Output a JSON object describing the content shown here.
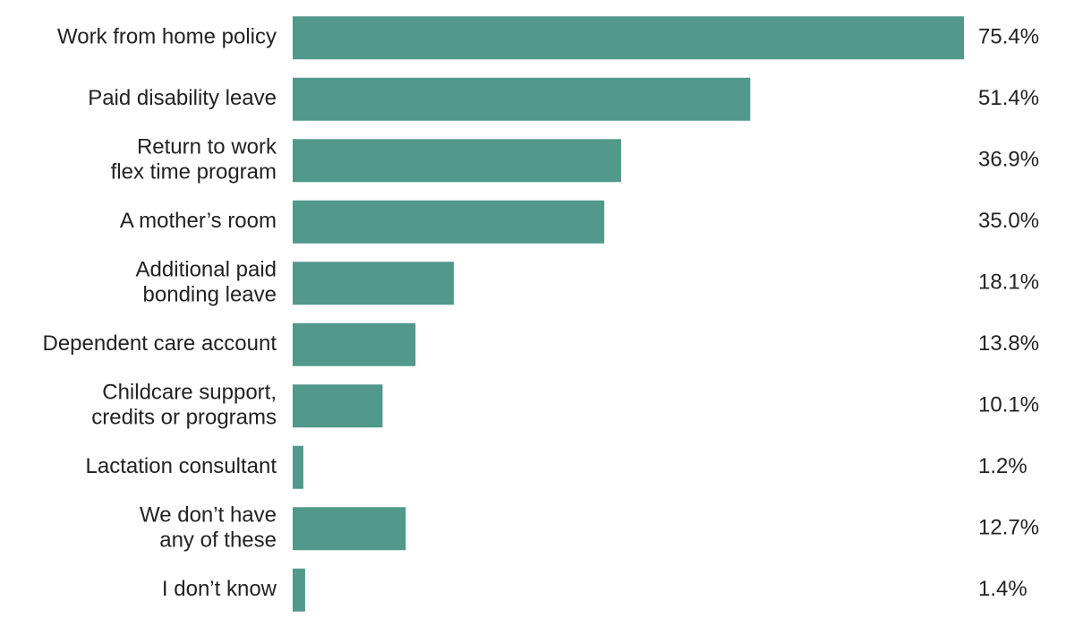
{
  "chart_data": {
    "type": "bar",
    "orientation": "horizontal",
    "categories": [
      "Work from home policy",
      "Paid disability leave",
      "Return to work\nflex time program",
      "A mother’s room",
      "Additional paid\nbonding leave",
      "Dependent care account",
      "Childcare support,\ncredits or programs",
      "Lactation consultant",
      "We don’t have\nany of these",
      "I don’t know"
    ],
    "values": [
      75.4,
      51.4,
      36.9,
      35.0,
      18.1,
      13.8,
      10.1,
      1.2,
      12.7,
      1.4
    ],
    "value_labels": [
      "75.4%",
      "51.4%",
      "36.9%",
      "35.0%",
      "18.1%",
      "13.8%",
      "10.1%",
      "1.2%",
      "12.7%",
      "1.4%"
    ],
    "color": "#52988b"
  }
}
